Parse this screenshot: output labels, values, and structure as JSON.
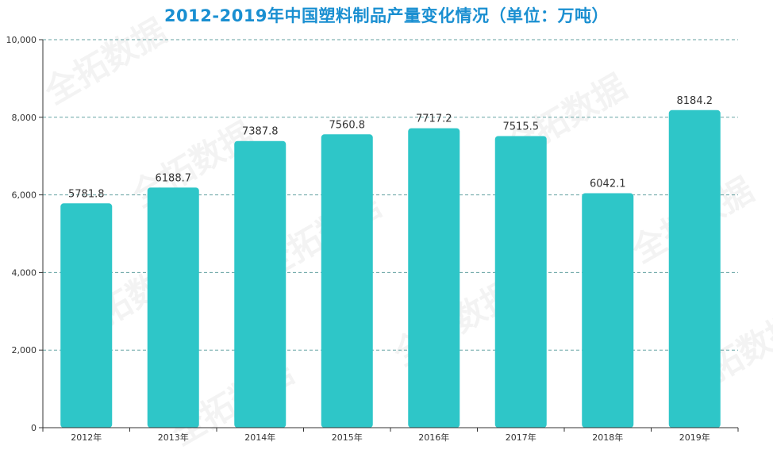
{
  "colors": {
    "title": "#1a8fd1",
    "bar": "#2ec6c8",
    "grid": "#3f8c8c",
    "axis": "#333333",
    "label": "#333333"
  },
  "watermark": "全拓数据",
  "chart_data": {
    "type": "bar",
    "title": "2012-2019年中国塑料制品产量变化情况（单位：万吨）",
    "xlabel": "",
    "ylabel": "",
    "categories": [
      "2012年",
      "2013年",
      "2014年",
      "2015年",
      "2016年",
      "2017年",
      "2018年",
      "2019年"
    ],
    "values": [
      5781.8,
      6188.7,
      7387.8,
      7560.8,
      7717.2,
      7515.5,
      6042.1,
      8184.2
    ],
    "value_labels": [
      "5781.8",
      "6188.7",
      "7387.8",
      "7560.8",
      "7717.2",
      "7515.5",
      "6042.1",
      "8184.2"
    ],
    "ylim": [
      0,
      10000
    ],
    "yticks": [
      0,
      2000,
      4000,
      6000,
      8000,
      10000
    ],
    "ytick_labels": [
      "0",
      "2,000",
      "4,000",
      "6,000",
      "8,000",
      "10,000"
    ],
    "grid": true,
    "grid_style": "dashed",
    "legend": "none"
  }
}
